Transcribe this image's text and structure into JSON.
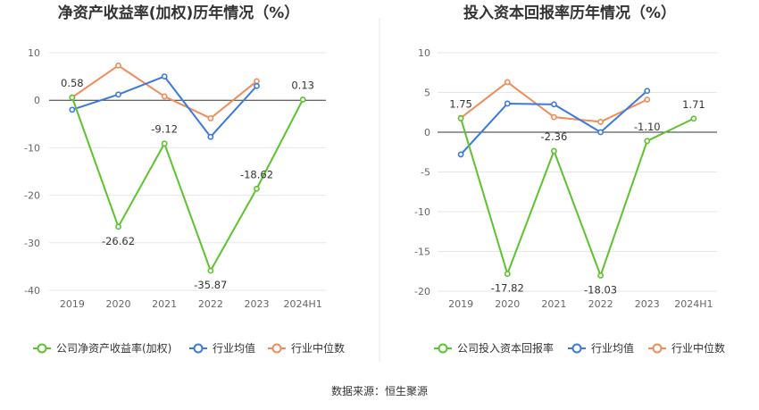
{
  "source_note": "数据来源：恒生聚源",
  "colors": {
    "company": "#5cc22e",
    "industry_avg": "#3b78e0",
    "industry_median": "#f08c5a",
    "grid": "#e6e6e6",
    "axis": "#333333",
    "divider": "#e8e8e8"
  },
  "chart_data": [
    {
      "type": "line",
      "title": "净资产收益率(加权)历年情况（%）",
      "categories": [
        "2019",
        "2020",
        "2021",
        "2022",
        "2023",
        "2024H1"
      ],
      "ylim": [
        -40,
        10
      ],
      "yticks": [
        10,
        0,
        -10,
        -20,
        -30,
        -40
      ],
      "grid": true,
      "legend_placement": "bottom",
      "series": [
        {
          "name": "公司净资产收益率(加权)",
          "color_key": "company",
          "values": [
            0.58,
            -26.62,
            -9.12,
            -35.87,
            -18.62,
            0.13
          ],
          "labels": [
            "0.58",
            "-26.62",
            "-9.12",
            "-35.87",
            "-18.62",
            "0.13"
          ]
        },
        {
          "name": "行业均值",
          "color_key": "industry_avg",
          "values": [
            -2.0,
            1.2,
            5.0,
            -7.7,
            3.0,
            null
          ]
        },
        {
          "name": "行业中位数",
          "color_key": "industry_median",
          "values": [
            0.6,
            7.3,
            0.8,
            -3.8,
            4.0,
            null
          ]
        }
      ]
    },
    {
      "type": "line",
      "title": "投入资本回报率历年情况（%）",
      "categories": [
        "2019",
        "2020",
        "2021",
        "2022",
        "2023",
        "2024H1"
      ],
      "ylim": [
        -20,
        10
      ],
      "yticks": [
        10,
        5,
        0,
        -5,
        -10,
        -15,
        -20
      ],
      "grid": true,
      "legend_placement": "bottom",
      "series": [
        {
          "name": "公司投入资本回报率",
          "color_key": "company",
          "values": [
            1.75,
            -17.82,
            -2.36,
            -18.03,
            -1.1,
            1.71
          ],
          "labels": [
            "1.75",
            "-17.82",
            "-2.36",
            "-18.03",
            "-1.10",
            "1.71"
          ]
        },
        {
          "name": "行业均值",
          "color_key": "industry_avg",
          "values": [
            -2.8,
            3.6,
            3.5,
            0.0,
            5.2,
            null
          ]
        },
        {
          "name": "行业中位数",
          "color_key": "industry_median",
          "values": [
            1.8,
            6.3,
            1.9,
            1.3,
            4.1,
            null
          ]
        }
      ]
    }
  ]
}
